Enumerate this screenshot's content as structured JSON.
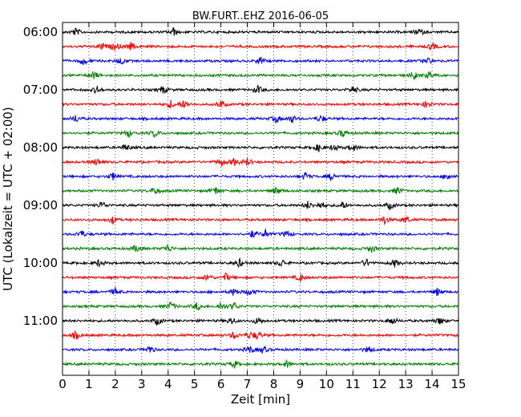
{
  "chart_data": {
    "type": "line",
    "title": "BW.FURT..EHZ 2016-06-05",
    "xlabel": "Zeit  [min]",
    "ylabel": "UTC (Lokalzeit = UTC + 02:00)",
    "xlim": [
      0,
      15
    ],
    "x_ticks": [
      "0",
      "1",
      "2",
      "3",
      "4",
      "5",
      "6",
      "7",
      "8",
      "9",
      "10",
      "11",
      "12",
      "13",
      "14",
      "15"
    ],
    "y_ticks": [
      "06:00",
      "07:00",
      "08:00",
      "09:00",
      "10:00",
      "11:00"
    ],
    "grid": "vertical dotted",
    "trace_interval_min": 15,
    "colors": [
      "#000000",
      "#ff0000",
      "#0000ff",
      "#008000"
    ],
    "traces": [
      {
        "start": "06:00",
        "events_min": [
          0.5,
          4.2,
          13.5
        ]
      },
      {
        "start": "06:15",
        "events_min": [
          1.5,
          2.0,
          2.6,
          14.0
        ]
      },
      {
        "start": "06:30",
        "events_min": [
          0.8,
          2.2,
          7.5,
          13.8
        ]
      },
      {
        "start": "06:45",
        "events_min": [
          1.2,
          13.3,
          13.9
        ]
      },
      {
        "start": "07:00",
        "events_min": [
          1.3,
          3.8,
          7.4,
          11.0
        ]
      },
      {
        "start": "07:15",
        "events_min": [
          4.1,
          4.6,
          6.0,
          13.8
        ]
      },
      {
        "start": "07:30",
        "events_min": [
          0.5,
          8.1,
          8.7,
          9.8
        ]
      },
      {
        "start": "07:45",
        "events_min": [
          2.5,
          3.5,
          10.6
        ]
      },
      {
        "start": "08:00",
        "events_min": [
          2.4,
          9.7,
          10.3,
          11.0
        ]
      },
      {
        "start": "08:15",
        "events_min": [
          1.3,
          6.0,
          6.5,
          7.0
        ]
      },
      {
        "start": "08:30",
        "events_min": [
          1.9,
          9.2,
          10.2,
          14.6
        ]
      },
      {
        "start": "08:45",
        "events_min": [
          3.5,
          5.8,
          8.1,
          12.7
        ]
      },
      {
        "start": "09:00",
        "events_min": [
          1.5,
          9.3,
          9.8,
          10.6,
          12.4
        ]
      },
      {
        "start": "09:15",
        "events_min": [
          1.9,
          12.2,
          13.0
        ]
      },
      {
        "start": "09:30",
        "events_min": [
          0.7,
          7.2,
          7.7,
          8.5
        ]
      },
      {
        "start": "09:45",
        "events_min": [
          2.8,
          4.0,
          11.7
        ]
      },
      {
        "start": "10:00",
        "events_min": [
          1.4,
          6.7,
          8.3,
          11.5,
          12.6
        ]
      },
      {
        "start": "10:15",
        "events_min": [
          5.5,
          6.2,
          9.0
        ]
      },
      {
        "start": "10:30",
        "events_min": [
          2.0,
          6.5,
          7.1,
          14.2
        ]
      },
      {
        "start": "10:45",
        "events_min": [
          4.1,
          5.1,
          6.0,
          6.5
        ]
      },
      {
        "start": "11:00",
        "events_min": [
          3.6,
          6.4,
          7.4,
          12.5,
          14.3
        ]
      },
      {
        "start": "11:15",
        "events_min": [
          0.5,
          6.5,
          7.1,
          7.4
        ]
      },
      {
        "start": "11:30",
        "events_min": [
          3.3,
          7.1,
          7.6,
          11.6
        ]
      },
      {
        "start": "11:45",
        "events_min": [
          6.5,
          8.5
        ]
      }
    ]
  }
}
